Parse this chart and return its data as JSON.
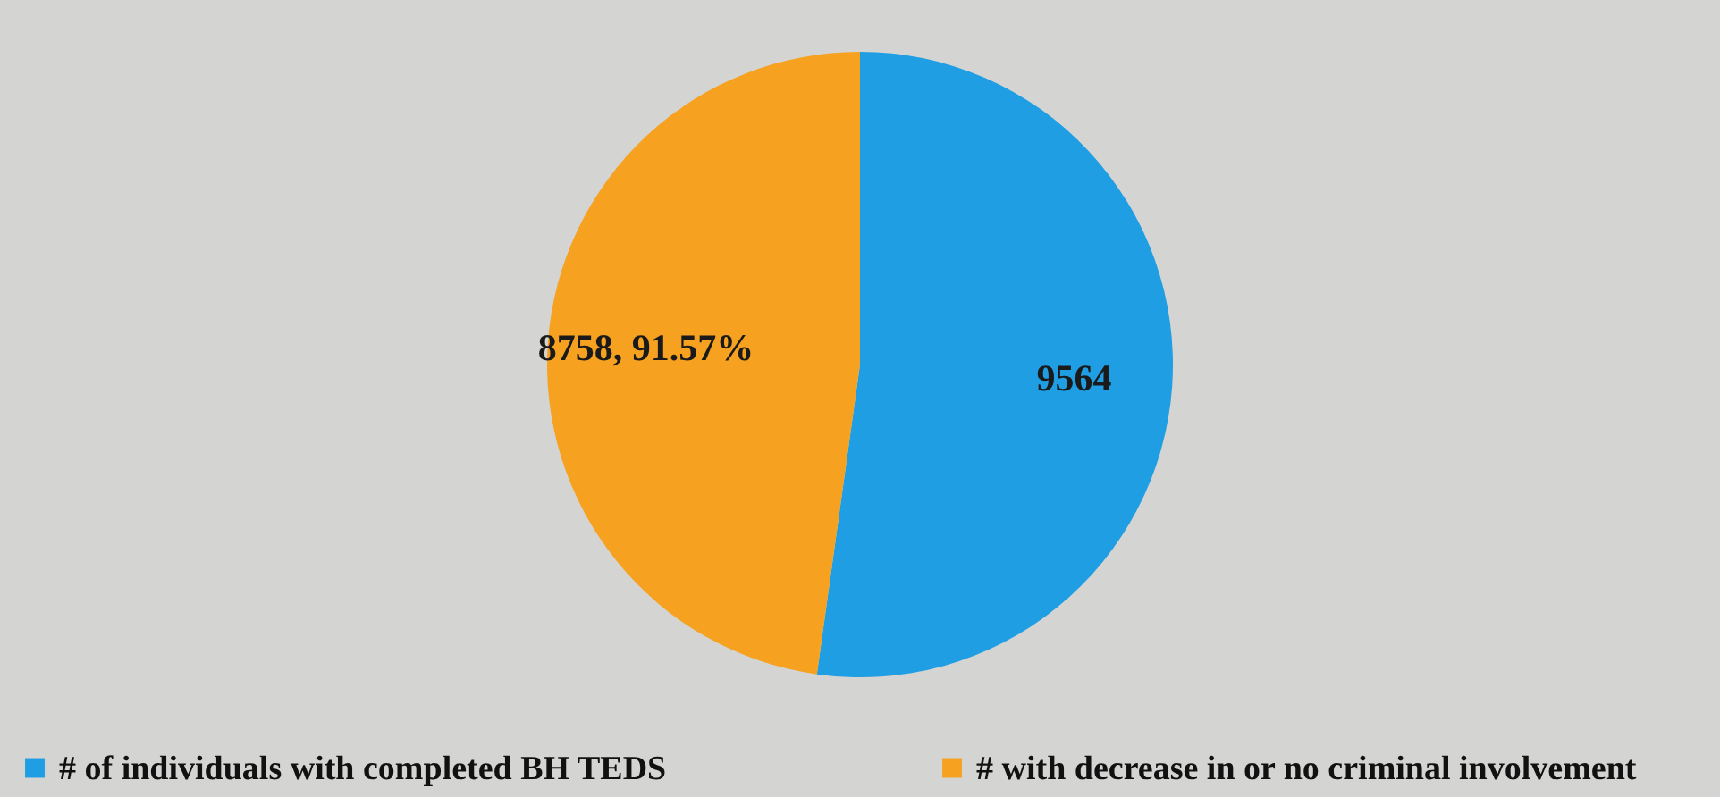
{
  "chart_data": {
    "type": "pie",
    "categories": [
      "# of individuals with completed BH TEDS",
      "# with decrease in or no criminal involvement"
    ],
    "values": [
      9564,
      8758
    ],
    "colors": [
      "#1f9ee3",
      "#f6a11f"
    ],
    "value_labels": [
      "9564",
      "8758, 91.57%"
    ],
    "legend": "bottom"
  }
}
